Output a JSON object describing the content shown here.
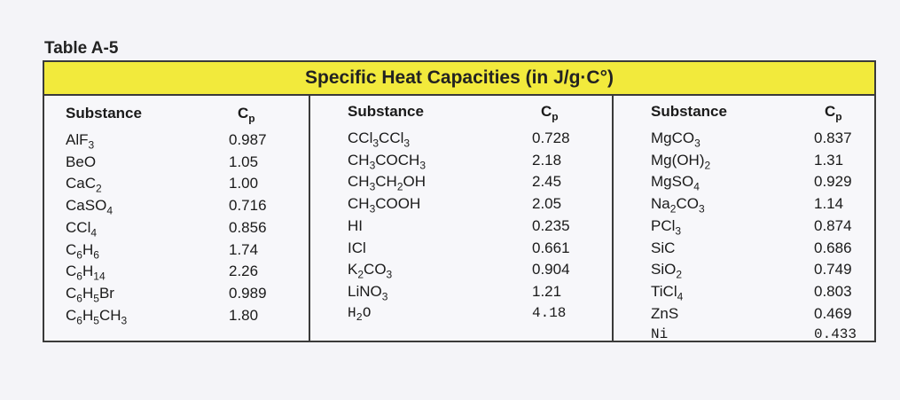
{
  "table_label": "Table A-5",
  "title": "Specific Heat Capacities (in J/g·C°)",
  "header_substance": "Substance",
  "header_cp": "Cp",
  "columns": [
    {
      "rows": [
        {
          "substance": "AlF3",
          "cp": "0.987"
        },
        {
          "substance": "BeO",
          "cp": "1.05"
        },
        {
          "substance": "CaC2",
          "cp": "1.00"
        },
        {
          "substance": "CaSO4",
          "cp": "0.716"
        },
        {
          "substance": "CCl4",
          "cp": "0.856"
        },
        {
          "substance": "C6H6",
          "cp": "1.74"
        },
        {
          "substance": "C6H14",
          "cp": "2.26"
        },
        {
          "substance": "C6H5Br",
          "cp": "0.989"
        },
        {
          "substance": "C6H5CH3",
          "cp": "1.80"
        }
      ]
    },
    {
      "rows": [
        {
          "substance": "CCl3CCl3",
          "cp": "0.728"
        },
        {
          "substance": "CH3COCH3",
          "cp": "2.18"
        },
        {
          "substance": "CH3CH2OH",
          "cp": "2.45"
        },
        {
          "substance": "CH3COOH",
          "cp": "2.05"
        },
        {
          "substance": "HI",
          "cp": "0.235"
        },
        {
          "substance": "ICl",
          "cp": "0.661"
        },
        {
          "substance": "K2CO3",
          "cp": "0.904"
        },
        {
          "substance": "LiNO3",
          "cp": "1.21"
        },
        {
          "substance": "H2O",
          "cp": "4.18",
          "typed": true
        }
      ]
    },
    {
      "rows": [
        {
          "substance": "MgCO3",
          "cp": "0.837"
        },
        {
          "substance": "Mg(OH)2",
          "cp": "1.31"
        },
        {
          "substance": "MgSO4",
          "cp": "0.929"
        },
        {
          "substance": "Na2CO3",
          "cp": "1.14"
        },
        {
          "substance": "PCl3",
          "cp": "0.874"
        },
        {
          "substance": "SiC",
          "cp": "0.686"
        },
        {
          "substance": "SiO2",
          "cp": "0.749"
        },
        {
          "substance": "TiCl4",
          "cp": "0.803"
        },
        {
          "substance": "ZnS",
          "cp": "0.469"
        },
        {
          "substance": "Ni",
          "cp": "0.433",
          "typed": true
        }
      ]
    }
  ]
}
